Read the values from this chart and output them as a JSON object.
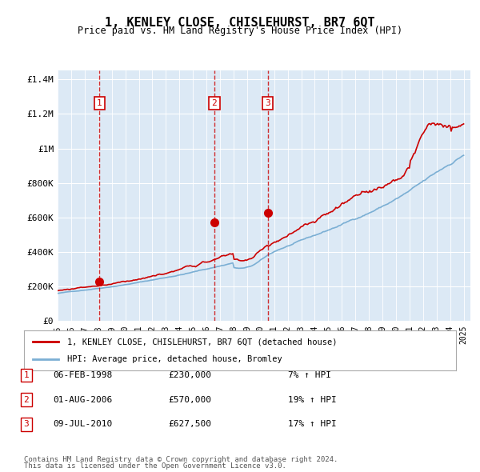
{
  "title": "1, KENLEY CLOSE, CHISLEHURST, BR7 6QT",
  "subtitle": "Price paid vs. HM Land Registry's House Price Index (HPI)",
  "background_color": "#dce9f5",
  "plot_bg_color": "#dce9f5",
  "hpi_line_color": "#7bafd4",
  "price_line_color": "#cc0000",
  "marker_color": "#cc0000",
  "dashed_line_color": "#cc0000",
  "ylabel_ticks": [
    "£0",
    "£200K",
    "£400K",
    "£600K",
    "£800K",
    "£1M",
    "£1.2M",
    "£1.4M"
  ],
  "ylabel_values": [
    0,
    200000,
    400000,
    600000,
    800000,
    1000000,
    1200000,
    1400000
  ],
  "xmin": 1995.0,
  "xmax": 2025.5,
  "ymin": 0,
  "ymax": 1450000,
  "transactions": [
    {
      "num": 1,
      "date": "06-FEB-1998",
      "year": 1998.1,
      "price": 230000,
      "pct": "7%",
      "dir": "↑"
    },
    {
      "num": 2,
      "date": "01-AUG-2006",
      "year": 2006.58,
      "price": 570000,
      "pct": "19%",
      "dir": "↑"
    },
    {
      "num": 3,
      "date": "09-JUL-2010",
      "year": 2010.52,
      "price": 627500,
      "pct": "17%",
      "dir": "↑"
    }
  ],
  "legend_line1": "1, KENLEY CLOSE, CHISLEHURST, BR7 6QT (detached house)",
  "legend_line2": "HPI: Average price, detached house, Bromley",
  "footer1": "Contains HM Land Registry data © Crown copyright and database right 2024.",
  "footer2": "This data is licensed under the Open Government Licence v3.0.",
  "xticks": [
    1995,
    1996,
    1997,
    1998,
    1999,
    2000,
    2001,
    2002,
    2003,
    2004,
    2005,
    2006,
    2007,
    2008,
    2009,
    2010,
    2011,
    2012,
    2013,
    2014,
    2015,
    2016,
    2017,
    2018,
    2019,
    2020,
    2021,
    2022,
    2023,
    2024,
    2025
  ]
}
